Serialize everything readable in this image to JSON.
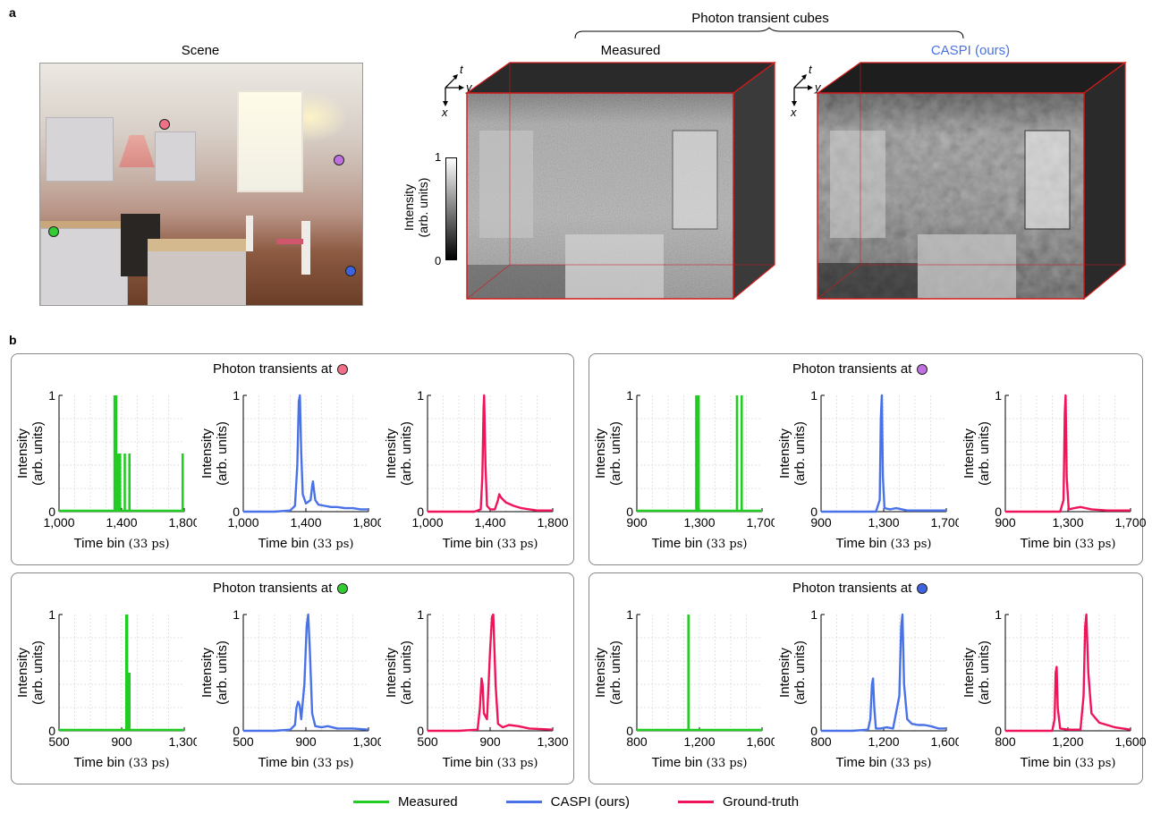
{
  "labels": {
    "panel_a": "a",
    "panel_b": "b"
  },
  "scene_title": "Scene",
  "cubes": {
    "group_title": "Photon transient cubes",
    "measured_title": "Measured",
    "caspi_title": "CASPI (ours)",
    "caspi_color": "#4a72e8",
    "axes": {
      "t": "t",
      "y": "y",
      "x": "x"
    }
  },
  "colorbar": {
    "label_line1": "Intensity",
    "label_line2": "(arb. units)",
    "max": "1",
    "min": "0"
  },
  "colors": {
    "pink": "#f07088",
    "purple": "#c070e0",
    "green": "#33cc33",
    "blue": "#3d63e0",
    "measured": "#22cc22",
    "caspi": "#4a72e8",
    "gt": "#f0145a"
  },
  "groups": [
    {
      "title": "Photon transients at",
      "dot_color": "#f07088",
      "xlabel": "Time bin",
      "xunit": "(33 ps)",
      "ylabel1": "Intensity",
      "ylabel2": "(arb. units)",
      "xlim": [
        1000,
        1800
      ],
      "xticks": [
        "1,000",
        "1,400",
        "1,800"
      ],
      "ylim": [
        0,
        1
      ],
      "yticks": [
        "0",
        "1"
      ]
    },
    {
      "title": "Photon transients at",
      "dot_color": "#c070e0",
      "xlabel": "Time bin",
      "xunit": "(33 ps)",
      "ylabel1": "Intensity",
      "ylabel2": "(arb. units)",
      "xlim": [
        900,
        1700
      ],
      "xticks": [
        "900",
        "1,300",
        "1,700"
      ],
      "ylim": [
        0,
        1
      ],
      "yticks": [
        "0",
        "1"
      ]
    },
    {
      "title": "Photon transients at",
      "dot_color": "#33cc33",
      "xlabel": "Time bin",
      "xunit": "(33 ps)",
      "ylabel1": "Intensity",
      "ylabel2": "(arb. units)",
      "xlim": [
        500,
        1300
      ],
      "xticks": [
        "500",
        "900",
        "1,300"
      ],
      "ylim": [
        0,
        1
      ],
      "yticks": [
        "0",
        "1"
      ]
    },
    {
      "title": "Photon transients at",
      "dot_color": "#3d63e0",
      "xlabel": "Time bin",
      "xunit": "(33 ps)",
      "ylabel1": "Intensity",
      "ylabel2": "(arb. units)",
      "xlim": [
        800,
        1600
      ],
      "xticks": [
        "800",
        "1,200",
        "1,600"
      ],
      "ylim": [
        0,
        1
      ],
      "yticks": [
        "0",
        "1"
      ]
    }
  ],
  "chart_data": [
    {
      "type": "line",
      "group": 0,
      "series": [
        {
          "name": "Measured",
          "kind": "bars",
          "x": [
            1355,
            1360,
            1365,
            1370,
            1375,
            1380,
            1390,
            1420,
            1450,
            1790
          ],
          "y": [
            1,
            1,
            1,
            0.5,
            0.5,
            0.5,
            0.5,
            0.5,
            0.5,
            0.5
          ]
        }
      ]
    },
    {
      "type": "line",
      "group": 0,
      "series": [
        {
          "name": "CASPI (ours)",
          "kind": "line",
          "x": [
            1000,
            1100,
            1200,
            1300,
            1330,
            1345,
            1355,
            1362,
            1370,
            1380,
            1400,
            1430,
            1440,
            1445,
            1450,
            1460,
            1480,
            1520,
            1560,
            1600,
            1650,
            1700,
            1750,
            1800
          ],
          "y": [
            0,
            0,
            0,
            0.01,
            0.05,
            0.4,
            0.95,
            1,
            0.5,
            0.15,
            0.07,
            0.1,
            0.22,
            0.26,
            0.2,
            0.1,
            0.06,
            0.05,
            0.04,
            0.04,
            0.03,
            0.03,
            0.02,
            0.02
          ]
        }
      ]
    },
    {
      "type": "line",
      "group": 0,
      "series": [
        {
          "name": "Ground-truth",
          "kind": "line",
          "x": [
            1000,
            1100,
            1200,
            1300,
            1340,
            1350,
            1358,
            1362,
            1370,
            1380,
            1400,
            1430,
            1450,
            1458,
            1470,
            1500,
            1550,
            1600,
            1650,
            1700,
            1800
          ],
          "y": [
            0,
            0,
            0,
            0,
            0.02,
            0.3,
            0.9,
            1,
            0.4,
            0.05,
            0.02,
            0.02,
            0.1,
            0.15,
            0.12,
            0.08,
            0.05,
            0.03,
            0.02,
            0.01,
            0.01
          ]
        }
      ]
    },
    {
      "type": "line",
      "group": 1,
      "series": [
        {
          "name": "Measured",
          "kind": "bars",
          "x": [
            1280,
            1285,
            1290,
            1295,
            1540,
            1570
          ],
          "y": [
            1,
            1,
            1,
            1,
            1,
            1
          ]
        }
      ]
    },
    {
      "type": "line",
      "group": 1,
      "series": [
        {
          "name": "CASPI (ours)",
          "kind": "line",
          "x": [
            900,
            1100,
            1250,
            1275,
            1282,
            1288,
            1295,
            1305,
            1340,
            1380,
            1450,
            1550,
            1700
          ],
          "y": [
            0,
            0,
            0,
            0.1,
            0.8,
            1,
            0.3,
            0.03,
            0.02,
            0.03,
            0.01,
            0.01,
            0.01
          ]
        }
      ]
    },
    {
      "type": "line",
      "group": 1,
      "series": [
        {
          "name": "Ground-truth",
          "kind": "line",
          "x": [
            900,
            1100,
            1250,
            1272,
            1280,
            1285,
            1292,
            1305,
            1340,
            1380,
            1450,
            1550,
            1700
          ],
          "y": [
            0,
            0,
            0,
            0.1,
            0.85,
            1,
            0.3,
            0.02,
            0.03,
            0.04,
            0.02,
            0.01,
            0.01
          ]
        }
      ]
    },
    {
      "type": "line",
      "group": 2,
      "series": [
        {
          "name": "Measured",
          "kind": "bars",
          "x": [
            930,
            935,
            940,
            945,
            950
          ],
          "y": [
            1,
            1,
            0.5,
            0.5,
            0.5
          ]
        }
      ]
    },
    {
      "type": "line",
      "group": 2,
      "series": [
        {
          "name": "CASPI (ours)",
          "kind": "line",
          "x": [
            500,
            700,
            800,
            830,
            840,
            850,
            860,
            870,
            890,
            905,
            915,
            925,
            940,
            960,
            1000,
            1040,
            1100,
            1200,
            1300
          ],
          "y": [
            0,
            0,
            0.01,
            0.05,
            0.2,
            0.25,
            0.22,
            0.1,
            0.4,
            0.9,
            1,
            0.7,
            0.15,
            0.04,
            0.03,
            0.04,
            0.02,
            0.02,
            0.01
          ]
        }
      ]
    },
    {
      "type": "line",
      "group": 2,
      "series": [
        {
          "name": "Ground-truth",
          "kind": "line",
          "x": [
            500,
            700,
            820,
            835,
            845,
            852,
            860,
            880,
            900,
            912,
            920,
            935,
            950,
            980,
            1020,
            1080,
            1150,
            1300
          ],
          "y": [
            0,
            0,
            0.01,
            0.2,
            0.45,
            0.4,
            0.15,
            0.1,
            0.7,
            0.98,
            1,
            0.4,
            0.06,
            0.03,
            0.05,
            0.04,
            0.02,
            0.01
          ]
        }
      ]
    },
    {
      "type": "line",
      "group": 3,
      "series": [
        {
          "name": "Measured",
          "kind": "bars",
          "x": [
            1130
          ],
          "y": [
            1
          ]
        }
      ]
    },
    {
      "type": "line",
      "group": 3,
      "series": [
        {
          "name": "CASPI (ours)",
          "kind": "line",
          "x": [
            800,
            1000,
            1100,
            1115,
            1125,
            1132,
            1140,
            1150,
            1180,
            1220,
            1260,
            1300,
            1312,
            1320,
            1330,
            1350,
            1380,
            1420,
            1460,
            1500,
            1550,
            1600
          ],
          "y": [
            0,
            0,
            0.01,
            0.1,
            0.4,
            0.45,
            0.2,
            0.02,
            0.02,
            0.03,
            0.02,
            0.3,
            0.9,
            1,
            0.4,
            0.1,
            0.06,
            0.05,
            0.05,
            0.04,
            0.02,
            0.02
          ]
        }
      ]
    },
    {
      "type": "line",
      "group": 3,
      "series": [
        {
          "name": "Ground-truth",
          "kind": "line",
          "x": [
            800,
            1000,
            1100,
            1115,
            1122,
            1128,
            1135,
            1150,
            1200,
            1280,
            1300,
            1310,
            1318,
            1330,
            1350,
            1400,
            1450,
            1500,
            1550,
            1600
          ],
          "y": [
            0,
            0,
            0,
            0.1,
            0.5,
            0.55,
            0.2,
            0.02,
            0.01,
            0.01,
            0.3,
            0.9,
            1,
            0.5,
            0.15,
            0.07,
            0.05,
            0.03,
            0.02,
            0.01
          ]
        }
      ]
    }
  ],
  "legend": [
    {
      "label": "Measured",
      "color": "#22cc22"
    },
    {
      "label": "CASPI (ours)",
      "color": "#4a72e8"
    },
    {
      "label": "Ground-truth",
      "color": "#f0145a"
    }
  ]
}
